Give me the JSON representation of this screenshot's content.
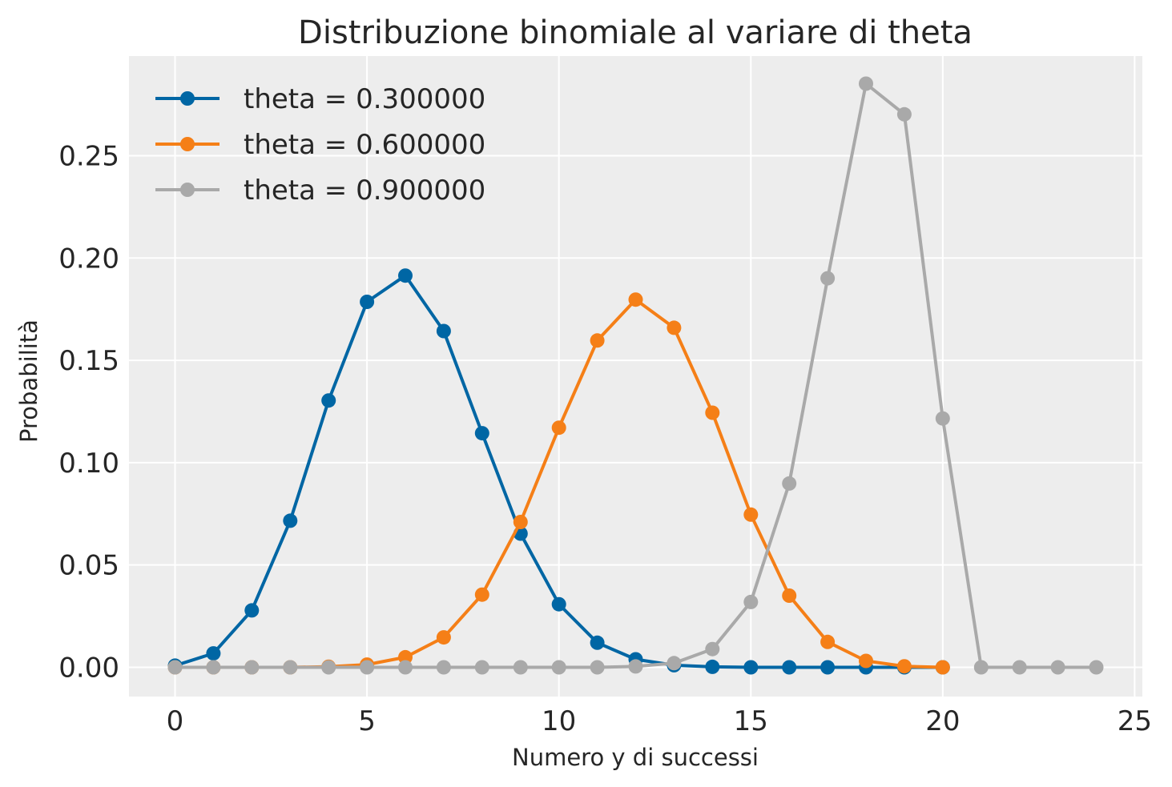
{
  "chart_data": {
    "type": "line",
    "title": "Distribuzione binomiale al variare di theta",
    "xlabel": "Numero y di successi",
    "ylabel": "Probabilità",
    "xlim": [
      -1.2,
      25.2
    ],
    "ylim": [
      -0.0143,
      0.2987
    ],
    "x_ticks": [
      0,
      5,
      10,
      15,
      20,
      25
    ],
    "x_tick_labels": [
      "0",
      "5",
      "10",
      "15",
      "20",
      "25"
    ],
    "y_ticks": [
      0,
      0.05,
      0.1,
      0.15,
      0.2,
      0.25
    ],
    "y_tick_labels": [
      "0.00",
      "0.05",
      "0.10",
      "0.15",
      "0.20",
      "0.25"
    ],
    "grid": true,
    "legend_position": "top-left",
    "background_color": "#ededed",
    "x": [
      0,
      1,
      2,
      3,
      4,
      5,
      6,
      7,
      8,
      9,
      10,
      11,
      12,
      13,
      14,
      15,
      16,
      17,
      18,
      19,
      20,
      21,
      22,
      23,
      24
    ],
    "series": [
      {
        "name": "theta = 0.300000",
        "color": "#0066a4",
        "marker": "circle",
        "values": [
          0.0008,
          0.0068,
          0.0278,
          0.0716,
          0.1304,
          0.1786,
          0.1914,
          0.1643,
          0.1144,
          0.0653,
          0.0308,
          0.012,
          0.0039,
          0.001,
          0.0002,
          0.0,
          0.0,
          0.0,
          0.0,
          0.0,
          0.0,
          null,
          null,
          null,
          null
        ]
      },
      {
        "name": "theta = 0.600000",
        "color": "#f57f17",
        "marker": "circle",
        "values": [
          0.0,
          0.0,
          0.0,
          0.0,
          0.0003,
          0.0013,
          0.0049,
          0.0146,
          0.0355,
          0.071,
          0.1171,
          0.1597,
          0.1797,
          0.1659,
          0.1244,
          0.0746,
          0.035,
          0.0124,
          0.0031,
          0.0005,
          0.0,
          null,
          null,
          null,
          null
        ]
      },
      {
        "name": "theta = 0.900000",
        "color": "#a9a9a9",
        "marker": "circle",
        "values": [
          0.0,
          0.0,
          0.0,
          0.0,
          0.0,
          0.0,
          0.0,
          0.0,
          0.0,
          0.0,
          0.0,
          0.0,
          0.0004,
          0.002,
          0.0089,
          0.0319,
          0.0898,
          0.1901,
          0.2852,
          0.2702,
          0.1216,
          0.0,
          0.0,
          0.0,
          0.0
        ]
      }
    ]
  }
}
